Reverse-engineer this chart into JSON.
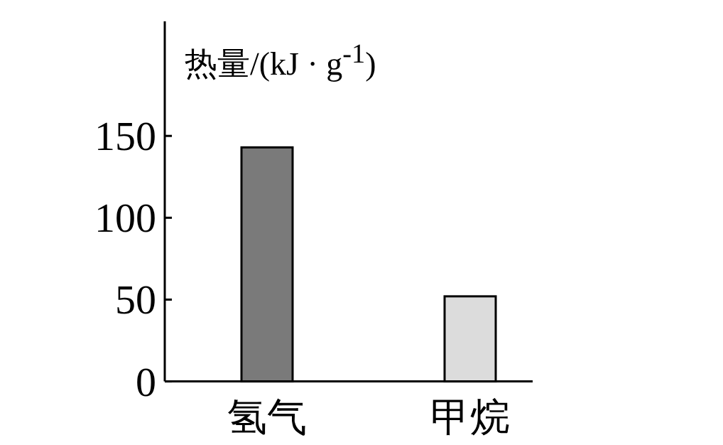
{
  "chart_data": {
    "type": "bar",
    "ylabel": "热量/(kJ · g$^{-1}$)",
    "categories": [
      "氢气",
      "甲烷"
    ],
    "values": [
      143,
      52
    ],
    "colors": [
      "#7a7a7a",
      "#dcdcdc"
    ],
    "ylim": [
      0,
      220
    ],
    "yticks": [
      0,
      50,
      100,
      150
    ]
  }
}
